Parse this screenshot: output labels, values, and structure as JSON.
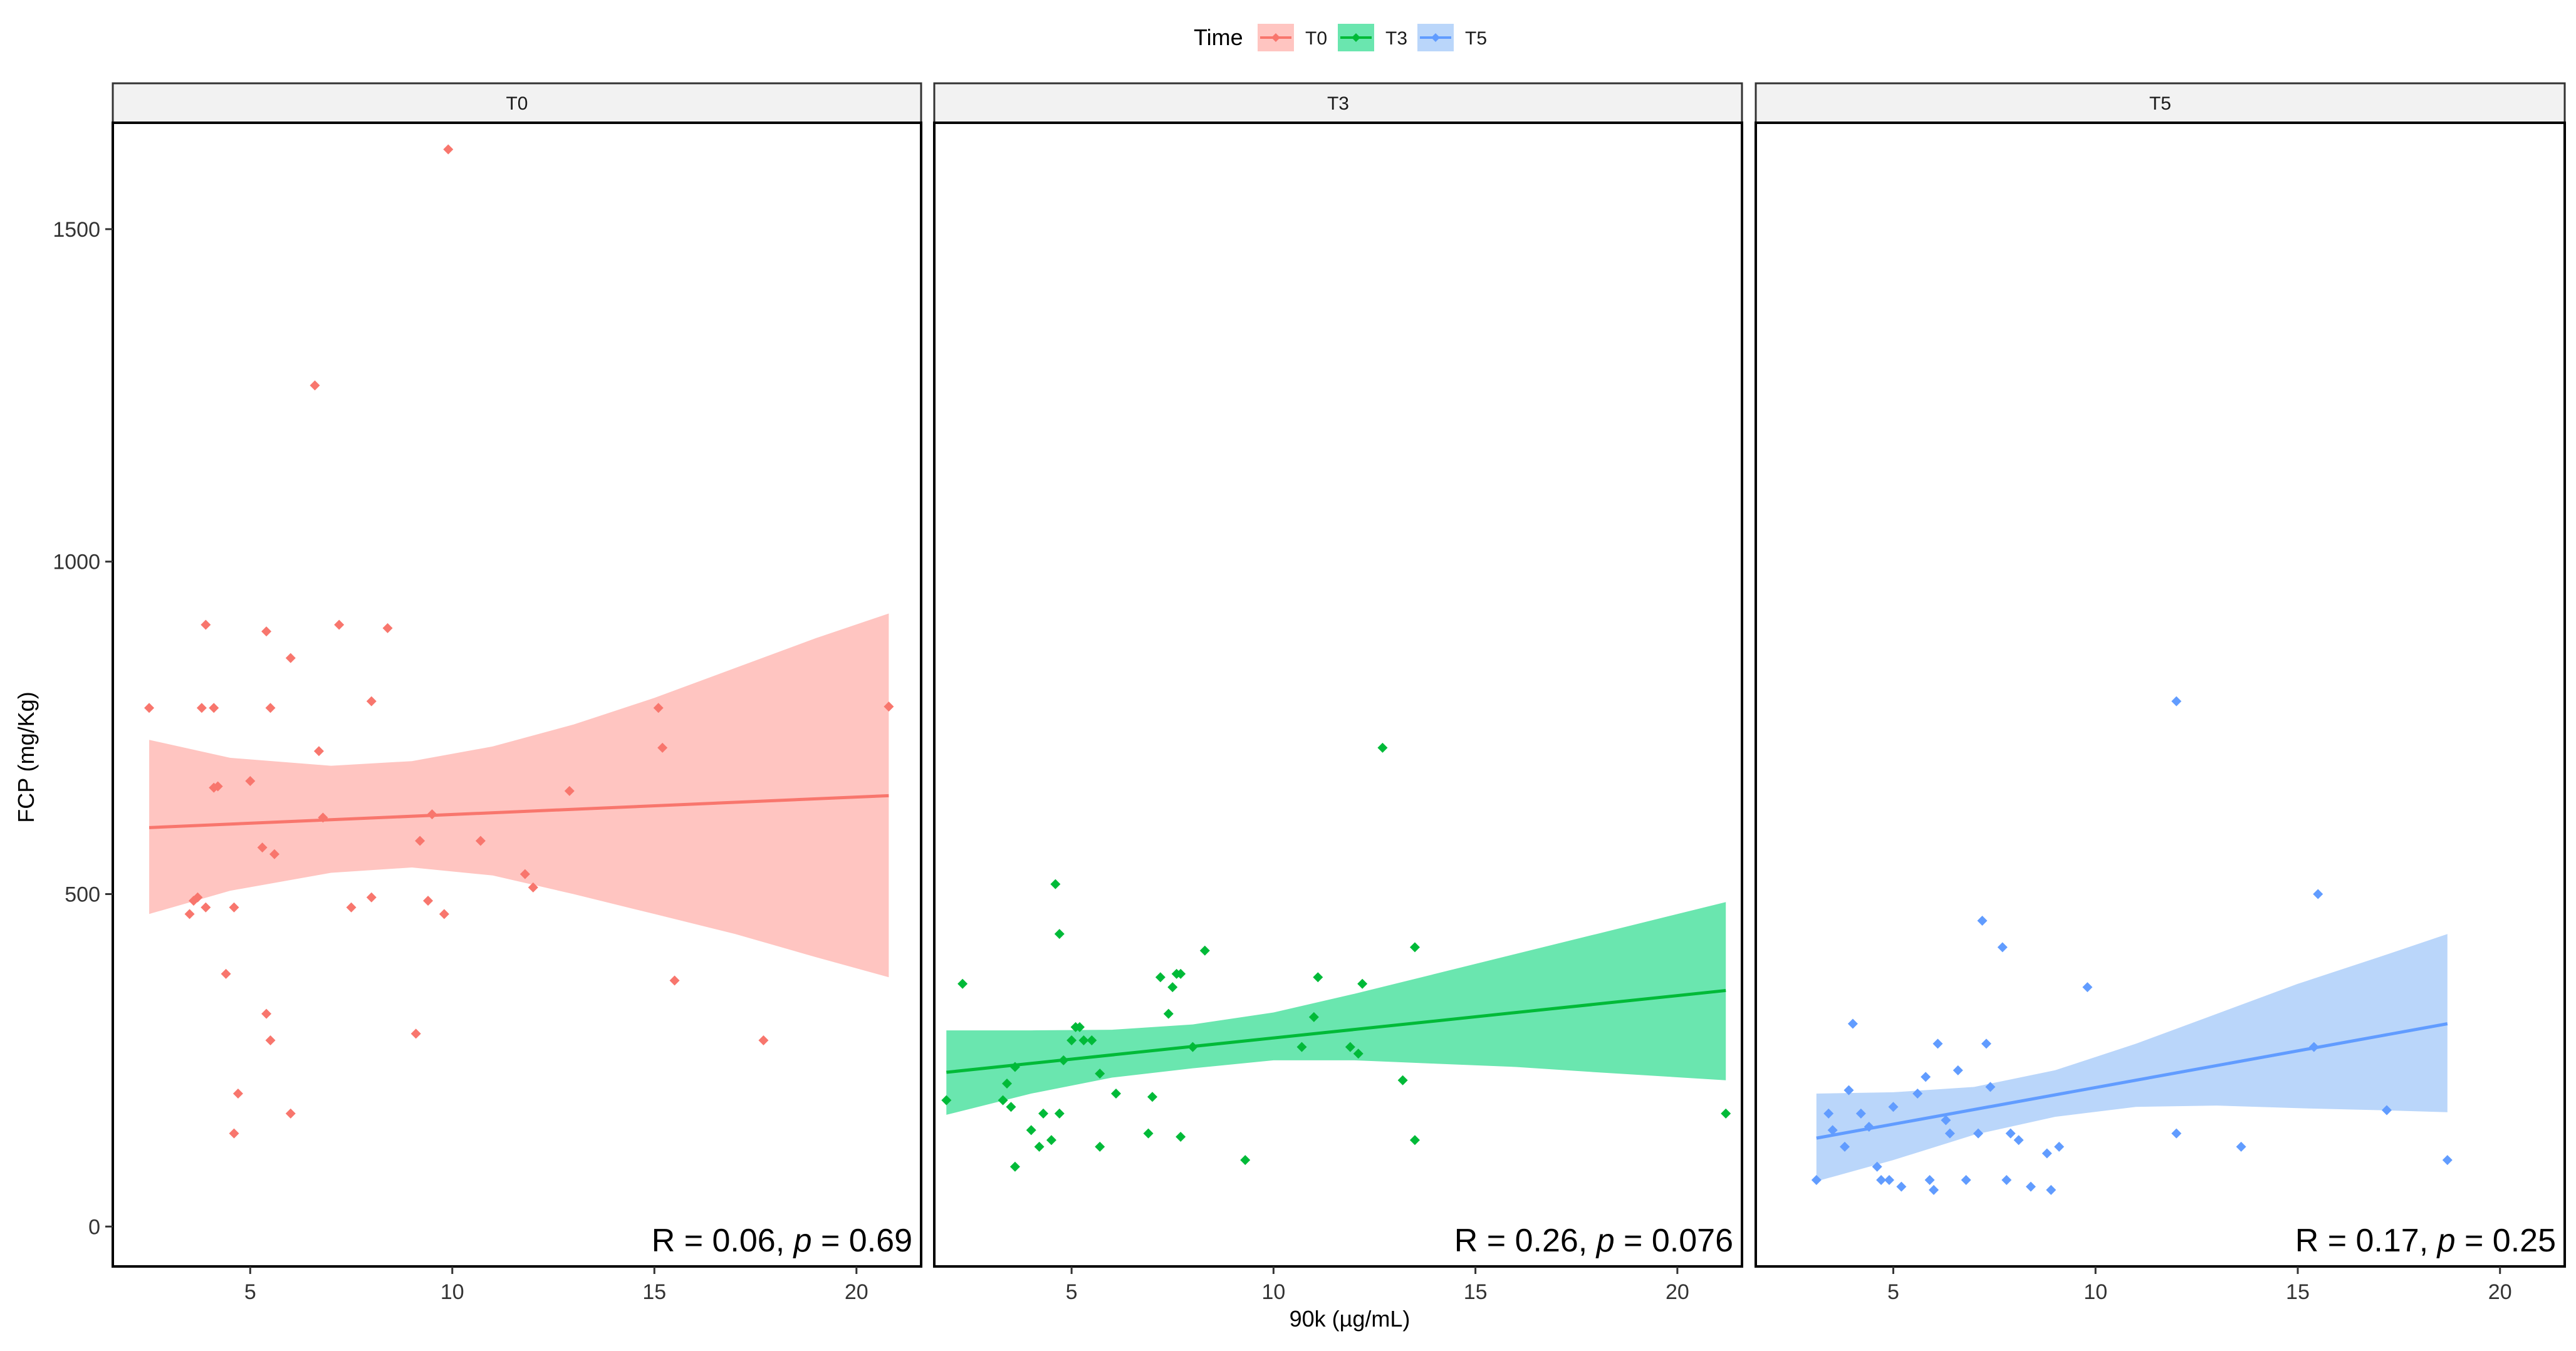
{
  "chart_data": {
    "type": "scatter",
    "title": "",
    "xlabel": "90k (µg/mL)",
    "ylabel": "FCP (mg/Kg)",
    "legend": {
      "title": "Time",
      "position": "top",
      "entries": [
        "T0",
        "T3",
        "T5"
      ]
    },
    "ylim": [
      -60,
      1660
    ],
    "yticks": [
      0,
      500,
      1000,
      1500
    ],
    "xlim": [
      1.6,
      21.6
    ],
    "xticks": [
      5,
      10,
      15,
      20
    ],
    "grid": false,
    "panels": [
      {
        "name": "T0",
        "strip_label": "T0",
        "color": "#F8766D",
        "band_color": "#FFC5C1",
        "stat": {
          "prefix": "R = 0.06, ",
          "p_symbol": "p",
          "suffix": " = 0.69"
        },
        "fit": {
          "x": [
            2.5,
            20.8
          ],
          "y": [
            600,
            648
          ]
        },
        "band": {
          "x": [
            2.5,
            4.5,
            7,
            9,
            11,
            13,
            15,
            17,
            19,
            20.8
          ],
          "upper": [
            732,
            705,
            693,
            700,
            722,
            755,
            795,
            840,
            885,
            922
          ],
          "lower": [
            470,
            505,
            532,
            540,
            528,
            500,
            470,
            440,
            405,
            375
          ]
        },
        "points": [
          [
            2.5,
            780
          ],
          [
            3.5,
            470
          ],
          [
            3.6,
            490
          ],
          [
            3.7,
            495
          ],
          [
            3.8,
            780
          ],
          [
            3.9,
            480
          ],
          [
            3.9,
            905
          ],
          [
            4.1,
            780
          ],
          [
            4.1,
            660
          ],
          [
            4.2,
            662
          ],
          [
            4.4,
            380
          ],
          [
            4.6,
            480
          ],
          [
            4.6,
            140
          ],
          [
            4.7,
            200
          ],
          [
            5.0,
            670
          ],
          [
            5.3,
            570
          ],
          [
            5.4,
            320
          ],
          [
            5.4,
            895
          ],
          [
            5.5,
            280
          ],
          [
            5.5,
            780
          ],
          [
            5.6,
            560
          ],
          [
            6.0,
            855
          ],
          [
            6.0,
            170
          ],
          [
            6.6,
            1265
          ],
          [
            6.7,
            715
          ],
          [
            6.8,
            615
          ],
          [
            7.2,
            905
          ],
          [
            7.5,
            480
          ],
          [
            8.0,
            495
          ],
          [
            8.0,
            790
          ],
          [
            8.4,
            900
          ],
          [
            9.1,
            290
          ],
          [
            9.2,
            580
          ],
          [
            9.4,
            490
          ],
          [
            9.5,
            620
          ],
          [
            9.8,
            470
          ],
          [
            9.9,
            1620
          ],
          [
            10.7,
            580
          ],
          [
            11.8,
            530
          ],
          [
            12.0,
            510
          ],
          [
            12.9,
            655
          ],
          [
            15.1,
            780
          ],
          [
            15.2,
            720
          ],
          [
            15.5,
            370
          ],
          [
            17.7,
            280
          ],
          [
            20.8,
            782
          ]
        ]
      },
      {
        "name": "T3",
        "strip_label": "T3",
        "color": "#00BA38",
        "band_color": "#6AE6AF",
        "stat": {
          "prefix": "R = 0.26, ",
          "p_symbol": "p",
          "suffix": " = 0.076"
        },
        "fit": {
          "x": [
            1.9,
            21.2
          ],
          "y": [
            232,
            355
          ]
        },
        "band": {
          "x": [
            1.9,
            4,
            6,
            8,
            10,
            12,
            14,
            16,
            18,
            21.2
          ],
          "upper": [
            295,
            295,
            296,
            304,
            322,
            350,
            380,
            410,
            440,
            488
          ],
          "lower": [
            168,
            200,
            224,
            238,
            250,
            250,
            245,
            240,
            232,
            220
          ]
        },
        "points": [
          [
            1.9,
            190
          ],
          [
            2.3,
            365
          ],
          [
            3.3,
            190
          ],
          [
            3.4,
            215
          ],
          [
            3.5,
            180
          ],
          [
            3.6,
            240
          ],
          [
            3.6,
            90
          ],
          [
            4.0,
            145
          ],
          [
            4.2,
            120
          ],
          [
            4.3,
            170
          ],
          [
            4.5,
            130
          ],
          [
            4.6,
            515
          ],
          [
            4.7,
            440
          ],
          [
            4.7,
            170
          ],
          [
            4.8,
            250
          ],
          [
            5.0,
            280
          ],
          [
            5.1,
            300
          ],
          [
            5.2,
            300
          ],
          [
            5.3,
            280
          ],
          [
            5.5,
            280
          ],
          [
            5.7,
            120
          ],
          [
            5.7,
            230
          ],
          [
            6.1,
            200
          ],
          [
            6.9,
            140
          ],
          [
            7.0,
            195
          ],
          [
            7.2,
            375
          ],
          [
            7.4,
            320
          ],
          [
            7.5,
            360
          ],
          [
            7.6,
            380
          ],
          [
            7.7,
            135
          ],
          [
            7.7,
            380
          ],
          [
            8.0,
            270
          ],
          [
            8.3,
            415
          ],
          [
            9.3,
            100
          ],
          [
            10.7,
            270
          ],
          [
            11.0,
            315
          ],
          [
            11.1,
            375
          ],
          [
            11.9,
            270
          ],
          [
            12.1,
            260
          ],
          [
            12.2,
            365
          ],
          [
            12.7,
            720
          ],
          [
            13.2,
            220
          ],
          [
            13.5,
            420
          ],
          [
            13.5,
            130
          ],
          [
            21.2,
            170
          ]
        ]
      },
      {
        "name": "T5",
        "strip_label": "T5",
        "color": "#619CFF",
        "band_color": "#BAD6FA",
        "stat": {
          "prefix": "R = 0.17, ",
          "p_symbol": "p",
          "suffix": " = 0.25"
        },
        "fit": {
          "x": [
            3.1,
            18.7
          ],
          "y": [
            133,
            305
          ]
        },
        "band": {
          "x": [
            3.1,
            5,
            7,
            9,
            11,
            13,
            15,
            17,
            18.7
          ],
          "upper": [
            200,
            202,
            210,
            235,
            275,
            320,
            365,
            405,
            440
          ],
          "lower": [
            68,
            100,
            138,
            165,
            180,
            182,
            178,
            175,
            172
          ]
        },
        "points": [
          [
            3.1,
            70
          ],
          [
            3.4,
            170
          ],
          [
            3.5,
            145
          ],
          [
            3.8,
            120
          ],
          [
            3.9,
            205
          ],
          [
            4.0,
            305
          ],
          [
            4.2,
            170
          ],
          [
            4.4,
            150
          ],
          [
            4.6,
            90
          ],
          [
            4.7,
            70
          ],
          [
            4.9,
            70
          ],
          [
            5.0,
            180
          ],
          [
            5.2,
            60
          ],
          [
            5.6,
            200
          ],
          [
            5.8,
            225
          ],
          [
            5.9,
            70
          ],
          [
            6.0,
            55
          ],
          [
            6.1,
            275
          ],
          [
            6.3,
            160
          ],
          [
            6.4,
            140
          ],
          [
            6.6,
            235
          ],
          [
            6.8,
            70
          ],
          [
            7.1,
            140
          ],
          [
            7.2,
            460
          ],
          [
            7.3,
            275
          ],
          [
            7.4,
            210
          ],
          [
            7.7,
            420
          ],
          [
            7.8,
            70
          ],
          [
            7.9,
            140
          ],
          [
            8.1,
            130
          ],
          [
            8.4,
            60
          ],
          [
            8.8,
            110
          ],
          [
            8.9,
            55
          ],
          [
            9.1,
            120
          ],
          [
            9.8,
            360
          ],
          [
            12.0,
            790
          ],
          [
            12.0,
            140
          ],
          [
            13.6,
            120
          ],
          [
            15.4,
            270
          ],
          [
            15.5,
            500
          ],
          [
            17.2,
            175
          ],
          [
            18.7,
            100
          ]
        ]
      }
    ]
  }
}
